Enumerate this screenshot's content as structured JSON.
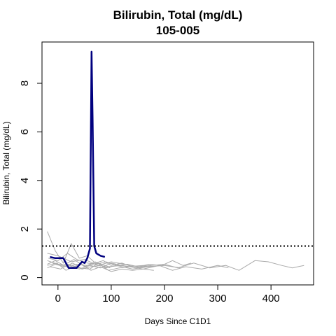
{
  "chart_data": {
    "type": "line",
    "title": "Bilirubin, Total (mg/dL)",
    "subtitle": "105-005",
    "xlabel": "Days Since C1D1",
    "ylabel": "Bilirubin, Total (mg/dL)",
    "xlim": [
      -30,
      480
    ],
    "ylim": [
      -0.3,
      9.7
    ],
    "x_ticks": [
      0,
      100,
      200,
      300,
      400
    ],
    "y_ticks": [
      0,
      2,
      4,
      6,
      8
    ],
    "grid": false,
    "legend": "none",
    "reference_line": {
      "y": 1.3,
      "style": "dotted",
      "color": "#000000"
    },
    "highlight_color": "#00007f",
    "background_color": "#aaaaaa",
    "highlight_series": {
      "x": [
        -15,
        -5,
        10,
        20,
        35,
        45,
        50,
        55,
        60,
        63,
        65,
        68,
        72,
        80,
        88
      ],
      "y": [
        0.85,
        0.8,
        0.8,
        0.4,
        0.4,
        0.65,
        0.6,
        0.8,
        1.2,
        9.3,
        6.5,
        1.3,
        1.0,
        0.9,
        0.85
      ]
    },
    "background_series": [
      {
        "x": [
          -20,
          -5,
          15,
          35,
          55,
          75,
          95,
          120,
          150,
          175,
          200,
          225,
          255,
          285,
          315,
          340,
          370,
          395,
          420,
          440,
          462
        ],
        "y": [
          0.55,
          0.7,
          0.45,
          0.55,
          0.5,
          0.6,
          0.45,
          0.5,
          0.4,
          0.5,
          0.55,
          0.4,
          0.6,
          0.4,
          0.5,
          0.3,
          0.7,
          0.65,
          0.5,
          0.4,
          0.5
        ]
      },
      {
        "x": [
          -20,
          -5,
          10,
          25,
          40,
          55,
          70,
          85,
          100,
          120,
          145,
          170,
          195,
          215,
          235,
          250
        ],
        "y": [
          1.9,
          1.1,
          0.6,
          1.4,
          0.8,
          0.9,
          0.6,
          0.7,
          0.5,
          0.6,
          0.4,
          0.55,
          0.5,
          0.7,
          0.5,
          0.6
        ]
      },
      {
        "x": [
          -20,
          0,
          20,
          40,
          60,
          80,
          100,
          130,
          160,
          180
        ],
        "y": [
          0.7,
          0.55,
          0.5,
          0.35,
          0.5,
          0.4,
          0.6,
          0.45,
          0.5,
          0.45
        ]
      },
      {
        "x": [
          -20,
          -2,
          15,
          30,
          45,
          62,
          80,
          100,
          120,
          140,
          160,
          180
        ],
        "y": [
          0.5,
          0.6,
          0.3,
          0.45,
          0.55,
          0.3,
          0.45,
          0.25,
          0.35,
          0.3,
          0.35,
          0.3
        ]
      },
      {
        "x": [
          -18,
          0,
          18,
          35,
          55,
          72,
          90,
          110,
          130,
          150,
          175
        ],
        "y": [
          0.8,
          0.7,
          1.0,
          0.75,
          0.6,
          0.55,
          0.65,
          0.5,
          0.55,
          0.45,
          0.5
        ]
      },
      {
        "x": [
          -15,
          5,
          20,
          40,
          60,
          75,
          95,
          115,
          135,
          160,
          190,
          215,
          240,
          270,
          300,
          320
        ],
        "y": [
          0.45,
          0.35,
          0.55,
          0.4,
          0.35,
          0.6,
          0.3,
          0.4,
          0.45,
          0.35,
          0.5,
          0.3,
          0.45,
          0.35,
          0.5,
          0.4
        ]
      },
      {
        "x": [
          -20,
          0,
          25,
          50,
          75,
          100,
          125,
          150
        ],
        "y": [
          1.0,
          0.9,
          0.65,
          0.75,
          0.5,
          0.65,
          0.55,
          0.45
        ]
      },
      {
        "x": [
          -10,
          10,
          30,
          50,
          70,
          90,
          110,
          140,
          170,
          200,
          230
        ],
        "y": [
          0.6,
          0.5,
          0.75,
          0.45,
          0.65,
          0.4,
          0.5,
          0.35,
          0.45,
          0.5,
          0.4
        ]
      },
      {
        "x": [
          -20,
          -5,
          12,
          28,
          45,
          62,
          80,
          98
        ],
        "y": [
          0.4,
          0.55,
          0.45,
          0.6,
          0.35,
          0.45,
          0.5,
          0.4
        ]
      }
    ]
  }
}
